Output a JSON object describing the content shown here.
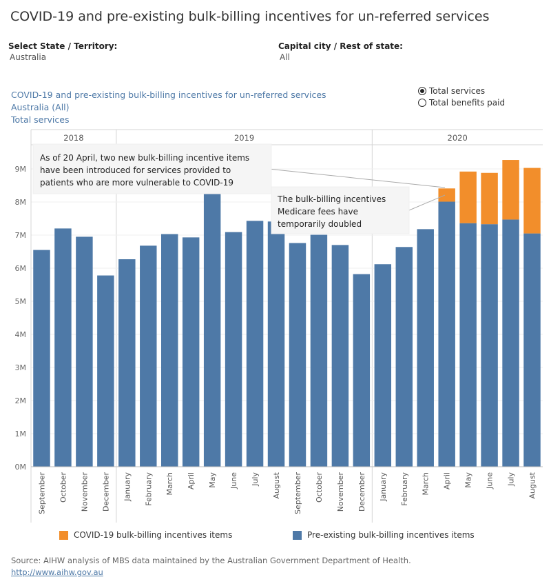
{
  "title": "COVID-19 and pre-existing bulk-billing incentives for un-referred services",
  "filters": {
    "state_label": "Select State / Territory:",
    "state_value": "Australia",
    "region_label": "Capital city / Rest of state:",
    "region_value": "All"
  },
  "subtitles": {
    "line1": "COVID-19 and pre-existing bulk-billing incentives for un-referred services",
    "line2": "Australia (All)",
    "line3": "Total services"
  },
  "measure_toggle": {
    "options": [
      {
        "label": "Total services",
        "selected": true
      },
      {
        "label": "Total benefits paid",
        "selected": false
      }
    ]
  },
  "annotations": {
    "note1": [
      "As of 20 April, two new bulk-billing incentive items",
      "have been introduced for services provided to",
      "patients who are more vulnerable to COVID-19"
    ],
    "note2": [
      "The bulk-billing incentives",
      "Medicare fees have",
      "temporarily doubled"
    ]
  },
  "legend": {
    "covid": "COVID-19 bulk-billing incentives items",
    "preexisting": "Pre-existing bulk-billing incentives items"
  },
  "colors": {
    "covid": "#f28e2b",
    "preexisting": "#4e79a7"
  },
  "source": {
    "text": "Source: AIHW analysis of MBS data maintained by the Australian Government Department of Health.",
    "link": "http://www.aihw.gov.au"
  },
  "chart_data": {
    "type": "bar",
    "stacked": true,
    "years": [
      {
        "label": "2018",
        "months": 4
      },
      {
        "label": "2019",
        "months": 12
      },
      {
        "label": "2020",
        "months": 8
      }
    ],
    "categories": [
      "September",
      "October",
      "November",
      "December",
      "January",
      "February",
      "March",
      "April",
      "May",
      "June",
      "July",
      "August",
      "September",
      "October",
      "November",
      "December",
      "January",
      "February",
      "March",
      "April",
      "May",
      "June",
      "July",
      "August"
    ],
    "series": [
      {
        "name": "Pre-existing bulk-billing incentives items",
        "values": [
          6.55,
          7.2,
          6.95,
          5.78,
          6.27,
          6.68,
          7.03,
          6.93,
          8.27,
          7.09,
          7.43,
          7.41,
          6.76,
          7.01,
          6.7,
          5.82,
          6.12,
          6.64,
          7.18,
          8.01,
          7.36,
          7.33,
          7.47,
          7.05
        ]
      },
      {
        "name": "COVID-19 bulk-billing incentives items",
        "values": [
          0,
          0,
          0,
          0,
          0,
          0,
          0,
          0,
          0,
          0,
          0,
          0,
          0,
          0,
          0,
          0,
          0,
          0,
          0,
          0.4,
          1.56,
          1.55,
          1.8,
          1.98
        ]
      }
    ],
    "y_ticks": [
      "0M",
      "1M",
      "2M",
      "3M",
      "4M",
      "5M",
      "6M",
      "7M",
      "8M",
      "9M"
    ],
    "ylim": [
      0,
      10
    ],
    "grid": true,
    "legend_position": "bottom"
  }
}
